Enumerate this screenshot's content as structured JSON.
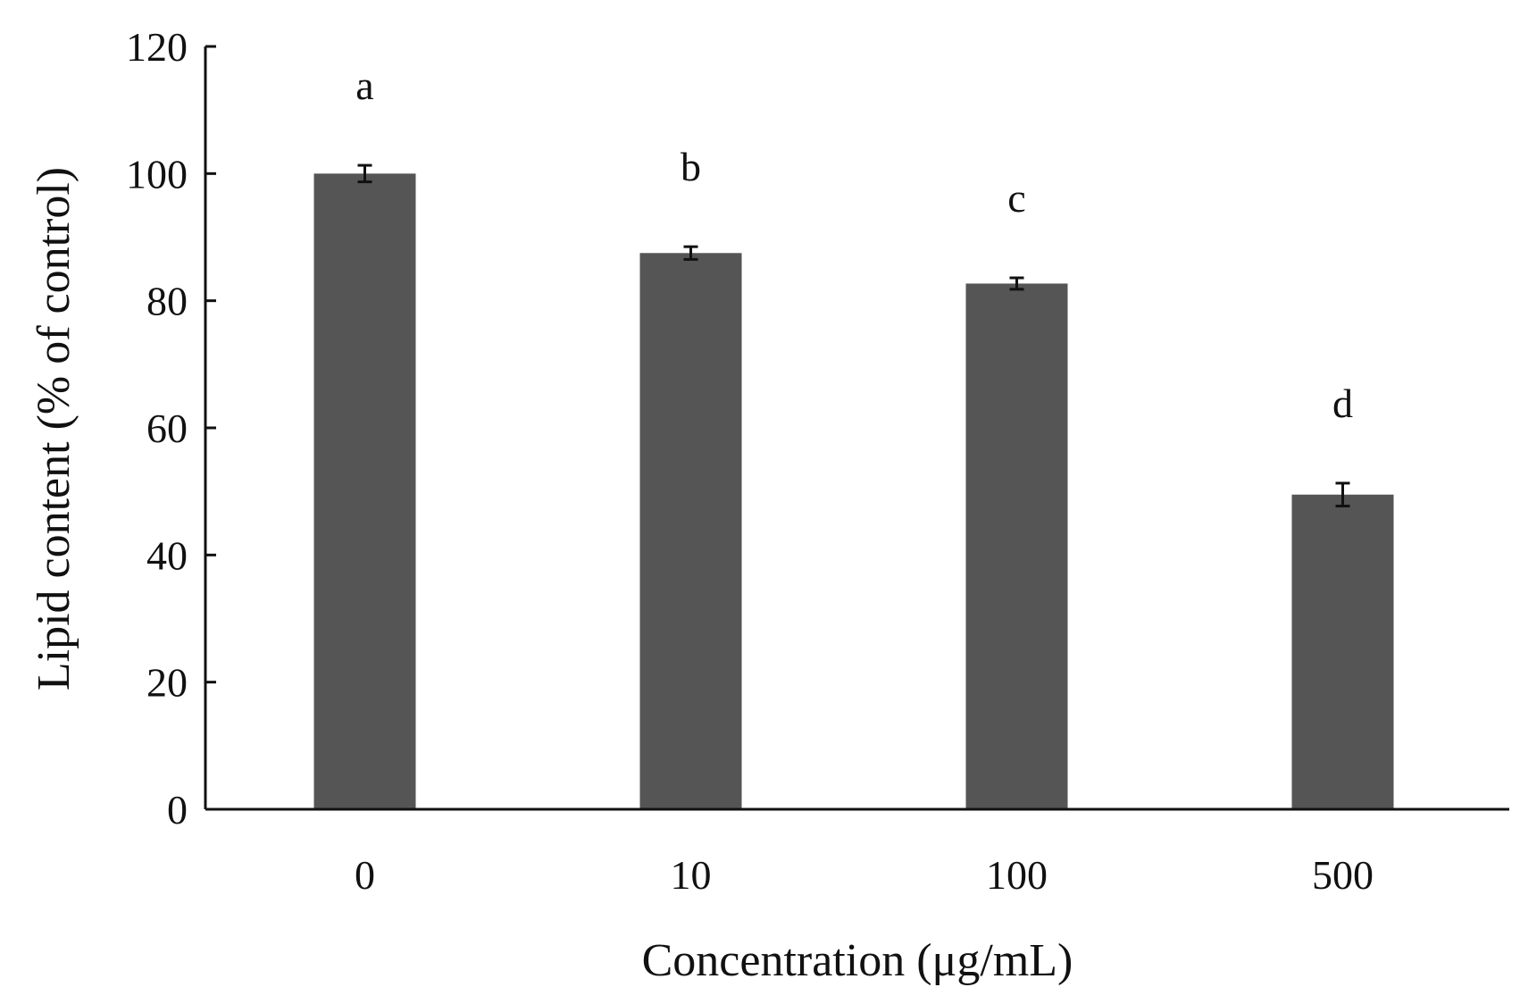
{
  "chart_data": {
    "type": "bar",
    "title": "",
    "xlabel": "Concentration (μg/mL)",
    "ylabel": "Lipid content (% of control)",
    "categories": [
      "0",
      "10",
      "100",
      "500"
    ],
    "series": [
      {
        "values": [
          100,
          87.5,
          82.7,
          49.5
        ],
        "errors": [
          1.3,
          1.0,
          0.9,
          1.8
        ],
        "significance": [
          "a",
          "b",
          "c",
          "d"
        ]
      }
    ],
    "ylim": [
      0,
      120
    ],
    "yticks": [
      "0",
      "20",
      "40",
      "60",
      "80",
      "100",
      "120"
    ],
    "grid": false,
    "legend": "none",
    "colors": {
      "bar": "#555555",
      "axis": "#111111"
    }
  }
}
